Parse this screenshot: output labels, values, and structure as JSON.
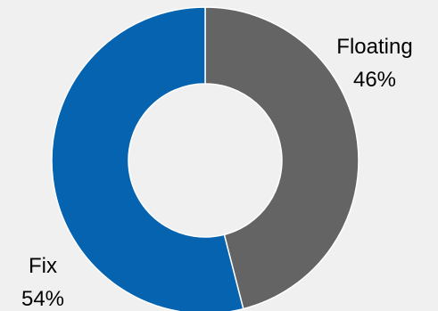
{
  "chart_data": {
    "type": "pie",
    "variant": "donut",
    "title": "",
    "slices": [
      {
        "label": "Floating",
        "percent_label": "46%",
        "value": 46,
        "color": "#646464"
      },
      {
        "label": "Fix",
        "percent_label": "54%",
        "value": 54,
        "color": "#0563b0"
      }
    ],
    "start_angle_deg": 0,
    "direction": "clockwise",
    "slice_stroke_color": "#ffffff"
  }
}
